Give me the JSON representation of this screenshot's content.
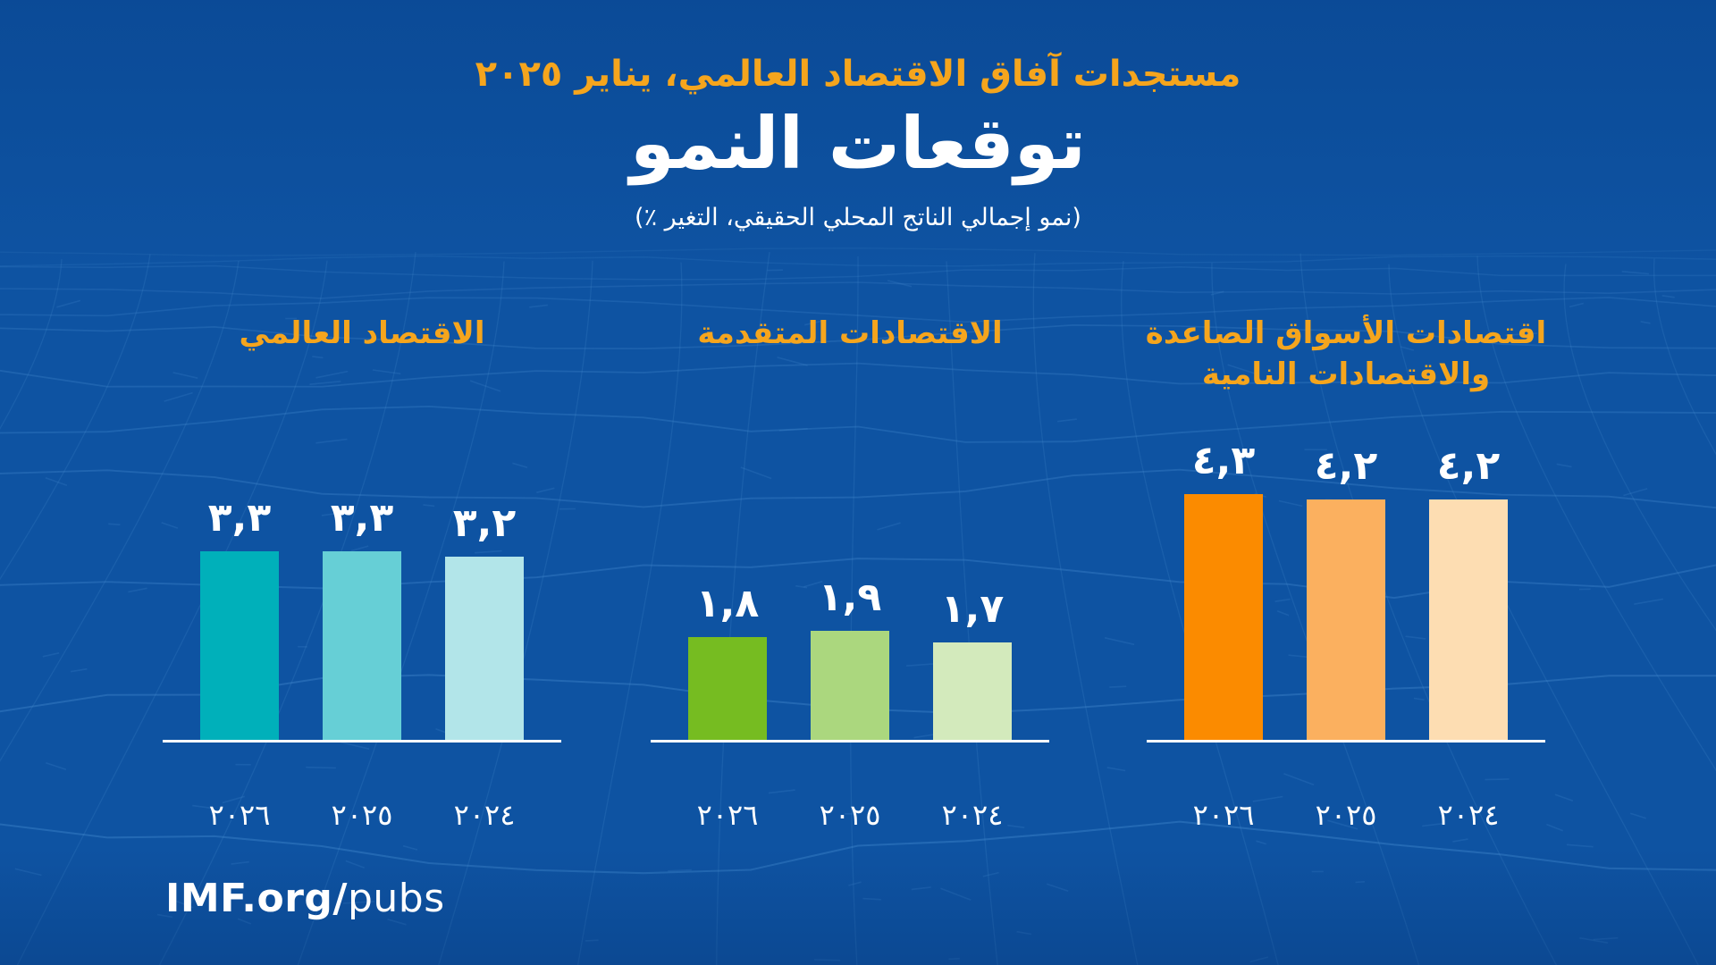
{
  "colors": {
    "background": "#0E53A2",
    "mesh_line": "#4A8FD3",
    "accent": "#F5A51D",
    "text": "#FFFFFF",
    "axis": "#FFFFFF"
  },
  "footer": {
    "brand_bold": "IMF.org/",
    "brand_rest": "pubs"
  },
  "chart_data": {
    "type": "bar",
    "direction": "rtl",
    "subtitle": "مستجدات آفاق الاقتصاد العالمي، يناير ٢٠٢٥",
    "title": "توقعات النمو",
    "note": "(نمو إجمالي الناتج المحلي الحقيقي، التغير ٪)",
    "grid": false,
    "value_labels": true,
    "ylim": [
      0,
      4.5
    ],
    "categories": [
      2024,
      2025,
      2026
    ],
    "categories_display": [
      "٢٠٢٤",
      "٢٠٢٥",
      "٢٠٢٦"
    ],
    "panels": [
      {
        "id": "world",
        "title": "الاقتصاد العالمي",
        "title_lines": [
          "الاقتصاد العالمي"
        ],
        "bars": [
          {
            "year": "٢٠٢٤",
            "value": 3.2,
            "label": "٣,٢",
            "color": "#B2E5E9"
          },
          {
            "year": "٢٠٢٥",
            "value": 3.3,
            "label": "٣,٣",
            "color": "#66CFD6"
          },
          {
            "year": "٢٠٢٦",
            "value": 3.3,
            "label": "٣,٣",
            "color": "#00B0BA"
          }
        ]
      },
      {
        "id": "advanced",
        "title": "الاقتصادات المتقدمة",
        "title_lines": [
          "الاقتصادات المتقدمة"
        ],
        "bars": [
          {
            "year": "٢٠٢٤",
            "value": 1.7,
            "label": "١,٧",
            "color": "#D3EABC"
          },
          {
            "year": "٢٠٢٥",
            "value": 1.9,
            "label": "١,٩",
            "color": "#ABD77E"
          },
          {
            "year": "٢٠٢٦",
            "value": 1.8,
            "label": "١,٨",
            "color": "#76BC21"
          }
        ]
      },
      {
        "id": "emde",
        "title": "اقتصادات الأسواق الصاعدة والاقتصادات النامية",
        "title_lines": [
          "اقتصادات الأسواق الصاعدة",
          "والاقتصادات النامية"
        ],
        "bars": [
          {
            "year": "٢٠٢٤",
            "value": 4.2,
            "label": "٤,٢",
            "color": "#FDDDB2"
          },
          {
            "year": "٢٠٢٥",
            "value": 4.2,
            "label": "٤,٢",
            "color": "#FBB05F"
          },
          {
            "year": "٢٠٢٦",
            "value": 4.3,
            "label": "٤,٣",
            "color": "#FB8B00"
          }
        ]
      }
    ]
  }
}
